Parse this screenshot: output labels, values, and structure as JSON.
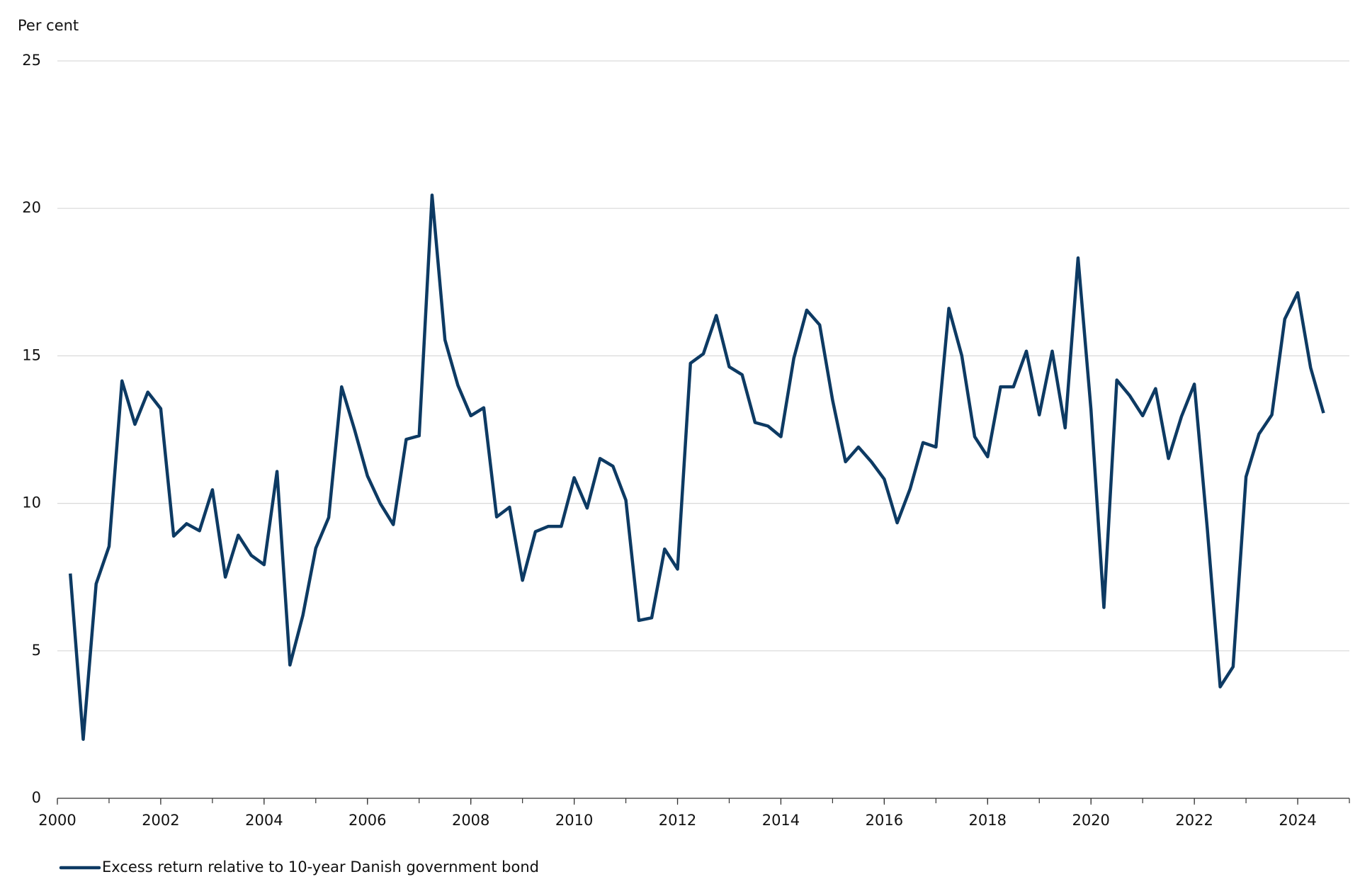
{
  "chart_data": {
    "type": "line",
    "y_label": "Per cent",
    "x": [
      2000.25,
      2000.5,
      2000.75,
      2001,
      2001.25,
      2001.5,
      2001.75,
      2002,
      2002.25,
      2002.5,
      2002.75,
      2003,
      2003.25,
      2003.5,
      2003.75,
      2004,
      2004.25,
      2004.5,
      2004.75,
      2005,
      2005.25,
      2005.5,
      2005.75,
      2006,
      2006.25,
      2006.5,
      2006.75,
      2007,
      2007.25,
      2007.5,
      2007.75,
      2008,
      2008.25,
      2008.5,
      2008.75,
      2009,
      2009.25,
      2009.5,
      2009.75,
      2010,
      2010.25,
      2010.5,
      2010.75,
      2011,
      2011.25,
      2011.5,
      2011.75,
      2012,
      2012.25,
      2012.5,
      2012.75,
      2013,
      2013.25,
      2013.5,
      2013.75,
      2014,
      2014.25,
      2014.5,
      2014.75,
      2015,
      2015.25,
      2015.5,
      2015.75,
      2016,
      2016.25,
      2016.5,
      2016.75,
      2017,
      2017.25,
      2017.5,
      2017.75,
      2018,
      2018.25,
      2018.5,
      2018.75,
      2019,
      2019.25,
      2019.5,
      2019.75,
      2020,
      2020.25,
      2020.5,
      2020.75,
      2021,
      2021.25,
      2021.5,
      2021.75,
      2022,
      2022.25,
      2022.5,
      2022.75,
      2023,
      2023.25,
      2023.5,
      2023.75,
      2024,
      2024.25,
      2024.5
    ],
    "series": [
      {
        "name": "Excess return relative to 10-year Danish government bond",
        "color": "#0d3a63",
        "values": [
          7.62,
          2.0,
          7.27,
          8.54,
          14.15,
          12.68,
          13.77,
          13.21,
          8.89,
          9.31,
          9.07,
          10.46,
          7.5,
          8.92,
          8.24,
          7.92,
          11.08,
          4.52,
          6.2,
          8.48,
          9.52,
          13.95,
          12.5,
          10.93,
          9.99,
          9.28,
          12.17,
          12.29,
          20.45,
          15.54,
          14.0,
          12.97,
          13.24,
          9.54,
          9.87,
          7.39,
          9.04,
          9.22,
          9.22,
          10.87,
          9.84,
          11.52,
          11.26,
          10.11,
          6.03,
          6.12,
          8.45,
          7.77,
          14.75,
          15.07,
          16.37,
          14.63,
          14.36,
          12.74,
          12.62,
          12.26,
          14.92,
          16.55,
          16.05,
          13.5,
          11.41,
          11.91,
          11.41,
          10.82,
          9.34,
          10.49,
          12.06,
          11.91,
          16.61,
          15.01,
          12.26,
          11.58,
          13.95,
          13.95,
          15.16,
          13.0,
          15.16,
          12.56,
          18.32,
          13.18,
          6.47,
          14.18,
          13.65,
          12.97,
          13.89,
          11.52,
          12.94,
          14.04,
          9.16,
          3.78,
          4.46,
          10.9,
          12.35,
          13.0,
          16.25,
          17.14,
          14.6,
          13.06
        ]
      }
    ],
    "xlim": [
      2000,
      2025
    ],
    "xticks": [
      2000,
      2002,
      2004,
      2006,
      2008,
      2010,
      2012,
      2014,
      2016,
      2018,
      2020,
      2022,
      2024
    ],
    "ylim": [
      0,
      25
    ],
    "yticks": [
      0,
      5,
      10,
      15,
      20,
      25
    ],
    "grid": true
  }
}
